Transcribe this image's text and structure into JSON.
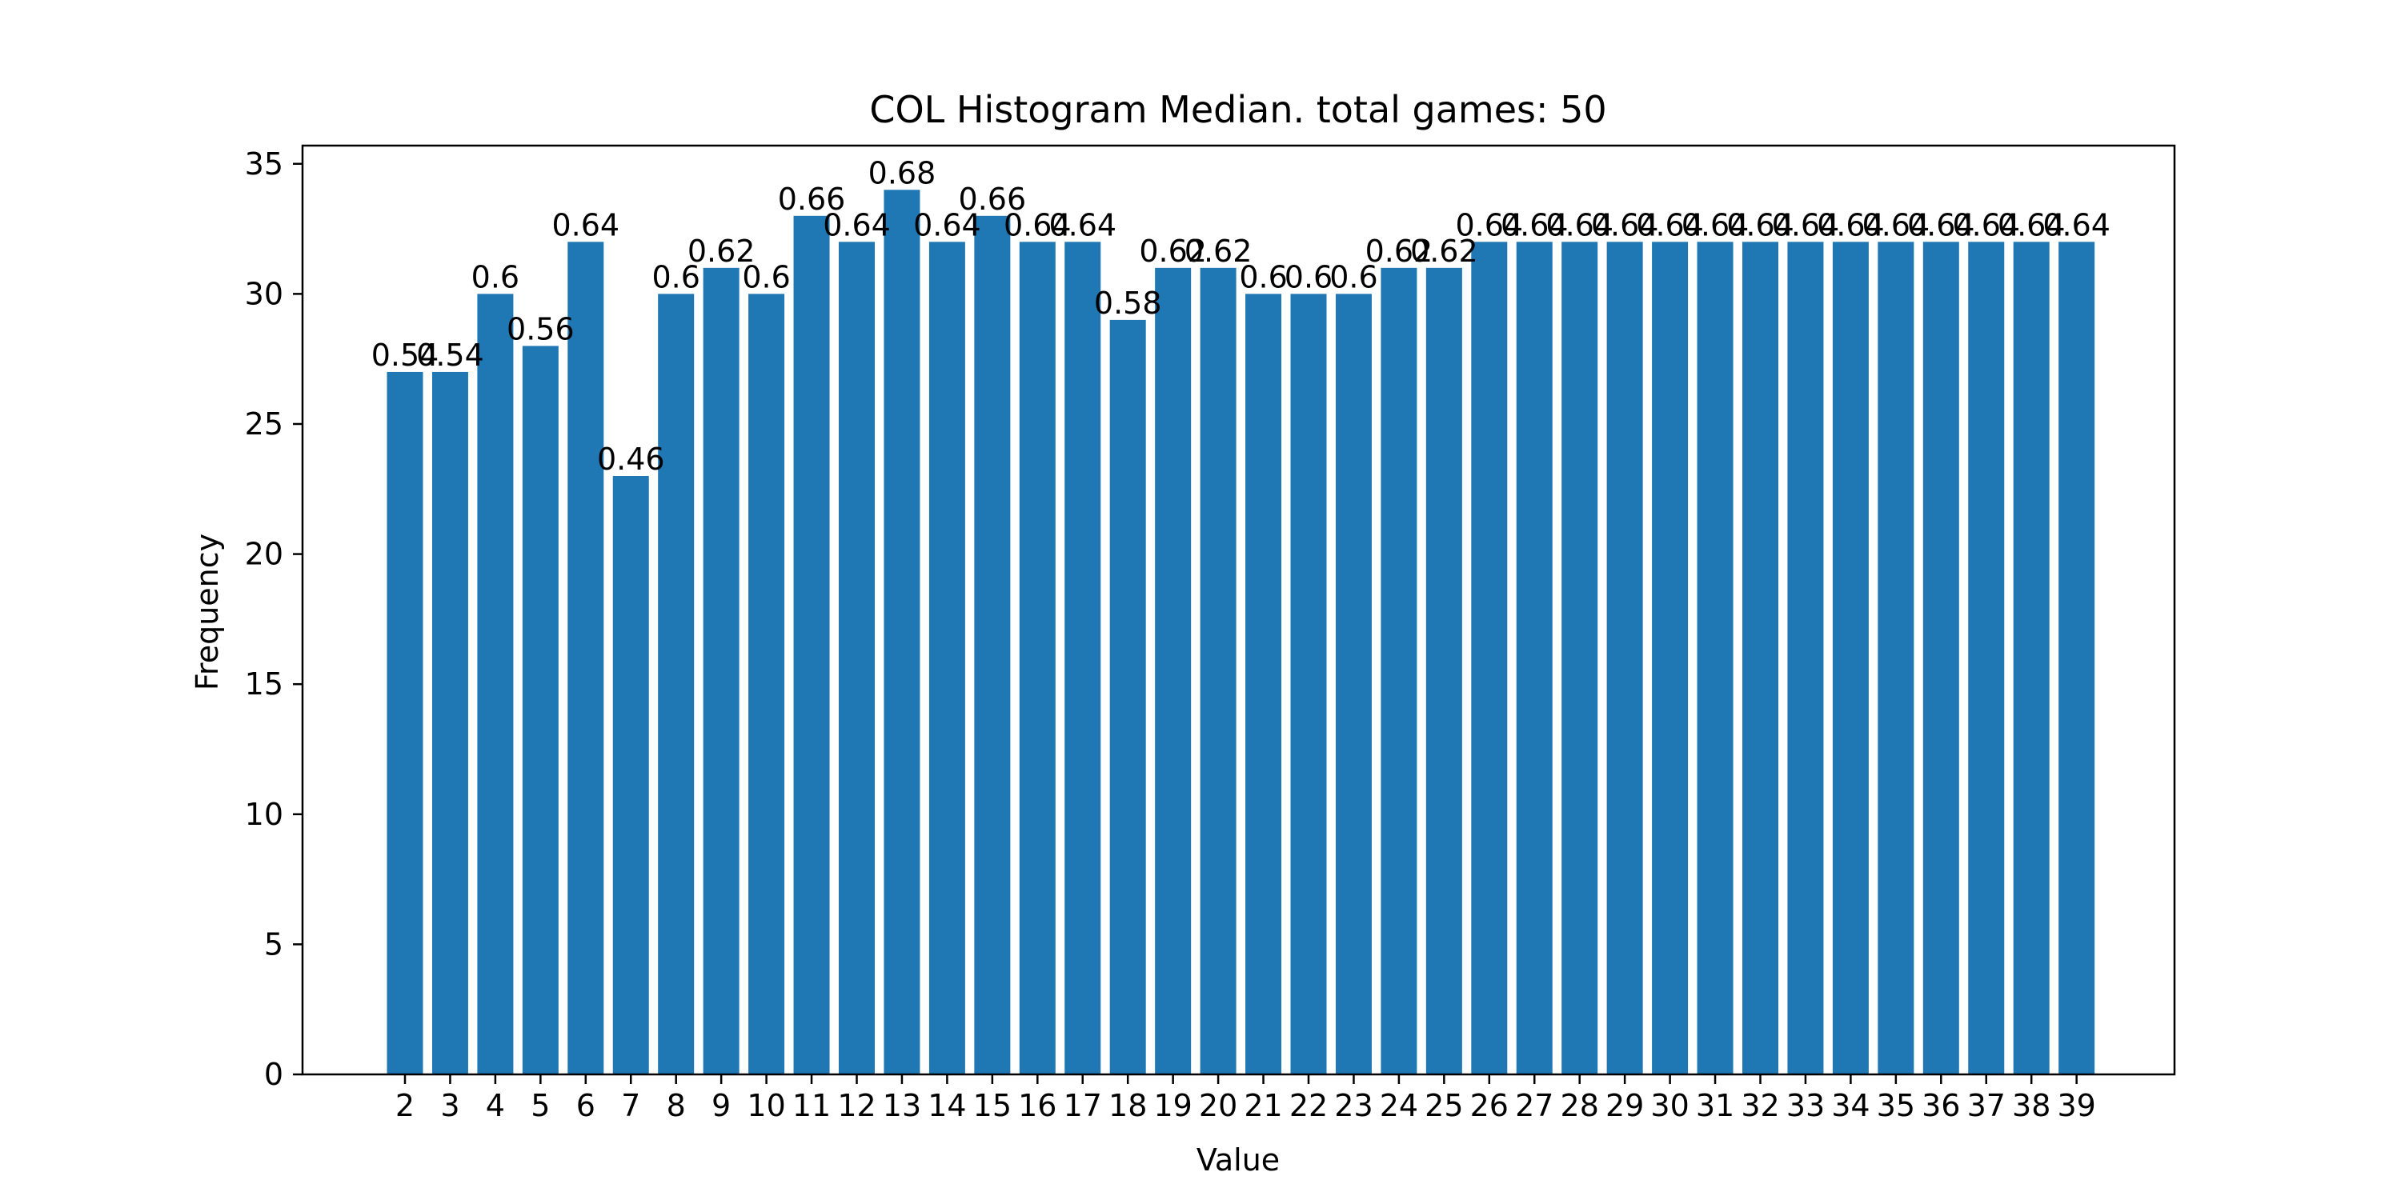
{
  "chart_data": {
    "type": "bar",
    "title": "COL Histogram Median. total games: 50",
    "xlabel": "Value",
    "ylabel": "Frequency",
    "categories": [
      "2",
      "3",
      "4",
      "5",
      "6",
      "7",
      "8",
      "9",
      "10",
      "11",
      "12",
      "13",
      "14",
      "15",
      "16",
      "17",
      "18",
      "19",
      "20",
      "21",
      "22",
      "23",
      "24",
      "25",
      "26",
      "27",
      "28",
      "29",
      "30",
      "31",
      "32",
      "33",
      "34",
      "35",
      "36",
      "37",
      "38",
      "39"
    ],
    "values": [
      27,
      27,
      30,
      28,
      32,
      23,
      30,
      31,
      30,
      33,
      32,
      34,
      32,
      33,
      32,
      32,
      29,
      31,
      31,
      30,
      30,
      30,
      31,
      31,
      32,
      32,
      32,
      32,
      32,
      32,
      32,
      32,
      32,
      32,
      32,
      32,
      32,
      32
    ],
    "bar_labels": [
      "0.54",
      "0.54",
      "0.6",
      "0.56",
      "0.64",
      "0.46",
      "0.6",
      "0.62",
      "0.6",
      "0.66",
      "0.64",
      "0.68",
      "0.64",
      "0.66",
      "0.64",
      "0.64",
      "0.58",
      "0.62",
      "0.62",
      "0.6",
      "0.6",
      "0.6",
      "0.62",
      "0.62",
      "0.64",
      "0.64",
      "0.64",
      "0.64",
      "0.64",
      "0.64",
      "0.64",
      "0.64",
      "0.64",
      "0.64",
      "0.64",
      "0.64",
      "0.64",
      "0.64"
    ],
    "yticks": [
      "0",
      "5",
      "10",
      "15",
      "20",
      "25",
      "30",
      "35"
    ],
    "ylim": [
      0,
      35.7
    ],
    "bar_color": "#1f77b4",
    "grid": false,
    "legend": "none"
  }
}
